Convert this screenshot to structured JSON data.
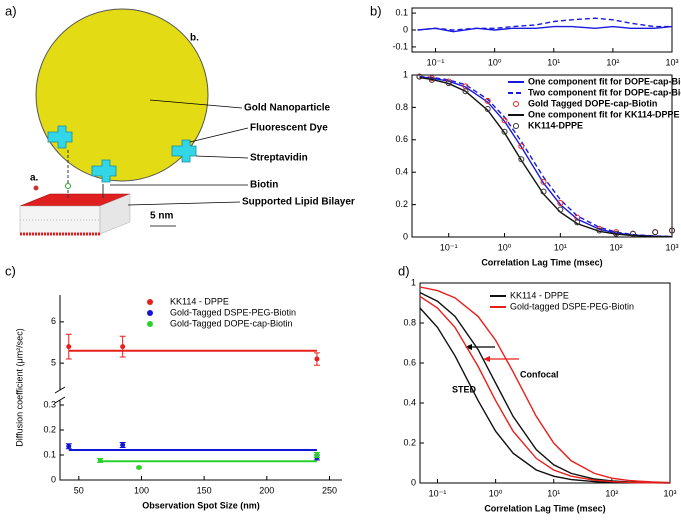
{
  "panels": [
    "a)",
    "b)",
    "c)",
    "d)"
  ],
  "diagram": {
    "labels": [
      "b.",
      "Gold Nanoparticle",
      "Fluorescent Dye",
      "Streptavidin",
      "Biotin",
      "Supported Lipid Bilayer",
      "a."
    ],
    "scale_bar": "5 nm"
  },
  "chart_data": [
    {
      "type": "line",
      "xscale": "log",
      "xlim": [
        0.04,
        1000
      ],
      "ylim": [
        -0.13,
        0.13
      ],
      "xticks": [
        {
          "value": 0.1,
          "label": "10⁻¹"
        },
        {
          "value": 1,
          "label": "10⁰"
        },
        {
          "value": 10,
          "label": "10¹"
        },
        {
          "value": 100,
          "label": "10²"
        },
        {
          "value": 1000,
          "label": "10³"
        }
      ],
      "yticks": [
        -0.1,
        0,
        0.1
      ],
      "x": [
        0.05,
        0.1,
        0.2,
        0.5,
        1,
        2,
        5,
        10,
        20,
        50,
        100,
        200,
        500,
        1000
      ],
      "series": [
        {
          "color": "#1a1adf",
          "style": "solid",
          "values": [
            0,
            0.01,
            -0.01,
            0.01,
            0,
            0.01,
            0.01,
            0.02,
            0.02,
            0.01,
            0.02,
            0.01,
            0.01,
            0.02
          ]
        },
        {
          "color": "#1a1adf",
          "style": "dashed",
          "values": [
            0,
            0.01,
            0,
            0.01,
            0.01,
            0.02,
            0.03,
            0.05,
            0.06,
            0.07,
            0.06,
            0.04,
            0.02,
            0.02
          ]
        }
      ]
    },
    {
      "type": "line",
      "xscale": "log",
      "xlim": [
        0.022,
        1000
      ],
      "ylim": [
        0,
        1
      ],
      "xlabel": "Correlation Lag Time (msec)",
      "xticks": [
        {
          "value": 0.1,
          "label": "10⁻¹"
        },
        {
          "value": 1,
          "label": "10⁰"
        },
        {
          "value": 10,
          "label": "10¹"
        },
        {
          "value": 100,
          "label": "10²"
        },
        {
          "value": 1000,
          "label": "10³"
        }
      ],
      "yticks": [
        0,
        0.2,
        0.4,
        0.6,
        0.8,
        1
      ],
      "x": [
        0.03,
        0.05,
        0.1,
        0.2,
        0.5,
        1,
        2,
        5,
        10,
        20,
        50,
        100,
        200,
        500,
        1000
      ],
      "series": [
        {
          "name": "One component fit for DOPE-cap-Biotin",
          "color": "#1a1adf",
          "style": "solid",
          "values": [
            0.988,
            0.98,
            0.962,
            0.926,
            0.833,
            0.714,
            0.556,
            0.333,
            0.2,
            0.111,
            0.048,
            0.024,
            0.012,
            0.005,
            0.002
          ]
        },
        {
          "name": "Two component fit for DOPE-cap-Biotin",
          "color": "#1a1adf",
          "style": "dashed",
          "values": [
            0.99,
            0.985,
            0.97,
            0.94,
            0.85,
            0.74,
            0.59,
            0.37,
            0.23,
            0.13,
            0.06,
            0.03,
            0.015,
            0.006,
            0.003
          ]
        },
        {
          "name": "Gold Tagged DOPE-cap-Biotin",
          "color": "#e8201c",
          "style": "marker",
          "values": [
            0.99,
            0.98,
            0.96,
            0.93,
            0.84,
            0.72,
            0.56,
            0.34,
            0.21,
            0.12,
            0.05,
            0.03,
            0.02,
            0.03,
            0.04
          ]
        },
        {
          "name": "One component fit for KK114-DPPE",
          "color": "#111111",
          "style": "solid",
          "values": [
            0.984,
            0.973,
            0.947,
            0.9,
            0.783,
            0.643,
            0.474,
            0.265,
            0.153,
            0.083,
            0.035,
            0.018,
            0.009,
            0.004,
            0.002
          ]
        },
        {
          "name": "KK114-DPPE",
          "color": "#333333",
          "style": "marker",
          "values": [
            0.99,
            0.97,
            0.95,
            0.9,
            0.79,
            0.65,
            0.48,
            0.28,
            0.17,
            0.09,
            0.04,
            0.02,
            0.02,
            0.03,
            0.04
          ]
        }
      ]
    },
    {
      "type": "errorbar",
      "xlim": [
        35,
        260
      ],
      "ylim": [
        0,
        0.32
      ],
      "ylim_break": [
        4.35,
        6.65
      ],
      "xlabel": "Observation Spot Size (nm)",
      "ylabel": "Diffusion coefficient (μm²/sec)",
      "xticks": [
        50,
        100,
        150,
        200,
        250
      ],
      "yticks": [
        0,
        0.1,
        0.2,
        0.3
      ],
      "yticks_break": [
        5,
        6
      ],
      "series": [
        {
          "name": "KK114 - DPPE",
          "color": "#e8201c",
          "x": [
            42,
            85,
            240
          ],
          "values": [
            5.4,
            5.4,
            5.1
          ],
          "errors": [
            0.3,
            0.25,
            0.15
          ],
          "fit": 5.3
        },
        {
          "name": "Gold-Tagged DSPE-PEG-Biotin",
          "color": "#1515d8",
          "x": [
            42,
            85,
            240
          ],
          "values": [
            0.135,
            0.14,
            0.09
          ],
          "errors": [
            0.01,
            0.01,
            0.01
          ],
          "fit": 0.12
        },
        {
          "name": "Gold-Tagged DOPE-cap-Biotin",
          "color": "#2bd12b",
          "x": [
            67,
            98,
            240
          ],
          "values": [
            0.078,
            0.05,
            0.1
          ],
          "errors": [
            0.008,
            0.003,
            0.01
          ],
          "fit": 0.075
        }
      ]
    },
    {
      "type": "line",
      "xscale": "log",
      "xlim": [
        0.05,
        1000
      ],
      "ylim": [
        0,
        1
      ],
      "xlabel": "Correlation Lag Time (msec)",
      "xticks": [
        {
          "value": 0.1,
          "label": "10⁻¹"
        },
        {
          "value": 1,
          "label": "10⁰"
        },
        {
          "value": 10,
          "label": "10¹"
        },
        {
          "value": 100,
          "label": "10²"
        },
        {
          "value": 1000,
          "label": "10³"
        }
      ],
      "yticks": [
        0,
        0.2,
        0.4,
        0.6,
        0.8,
        1
      ],
      "annotations": [
        "Confocal",
        "STED"
      ],
      "x": [
        0.05,
        0.1,
        0.2,
        0.5,
        1,
        2,
        5,
        10,
        20,
        50,
        100,
        200,
        500,
        1000
      ],
      "series": [
        {
          "name": "KK114 - DPPE",
          "color": "#111111",
          "style": "solid",
          "values": [
            0.952,
            0.909,
            0.833,
            0.667,
            0.5,
            0.333,
            0.167,
            0.091,
            0.048,
            0.02,
            0.01,
            0.005,
            0.002,
            0.001
          ]
        },
        {
          "name": "Gold-tagged DSPE-PEG-Biotin",
          "color": "#e8201c",
          "style": "solid",
          "values": [
            0.98,
            0.962,
            0.926,
            0.833,
            0.714,
            0.556,
            0.333,
            0.2,
            0.111,
            0.048,
            0.024,
            0.012,
            0.005,
            0.002
          ]
        },
        {
          "color": "#111111",
          "style": "solid",
          "values": [
            0.875,
            0.778,
            0.636,
            0.412,
            0.259,
            0.149,
            0.065,
            0.034,
            0.017,
            0.007,
            0.003,
            0.002,
            0.001,
            0
          ]
        },
        {
          "color": "#e8201c",
          "style": "solid",
          "values": [
            0.933,
            0.875,
            0.778,
            0.583,
            0.412,
            0.259,
            0.123,
            0.065,
            0.034,
            0.014,
            0.007,
            0.003,
            0.001,
            0.001
          ]
        }
      ]
    }
  ]
}
